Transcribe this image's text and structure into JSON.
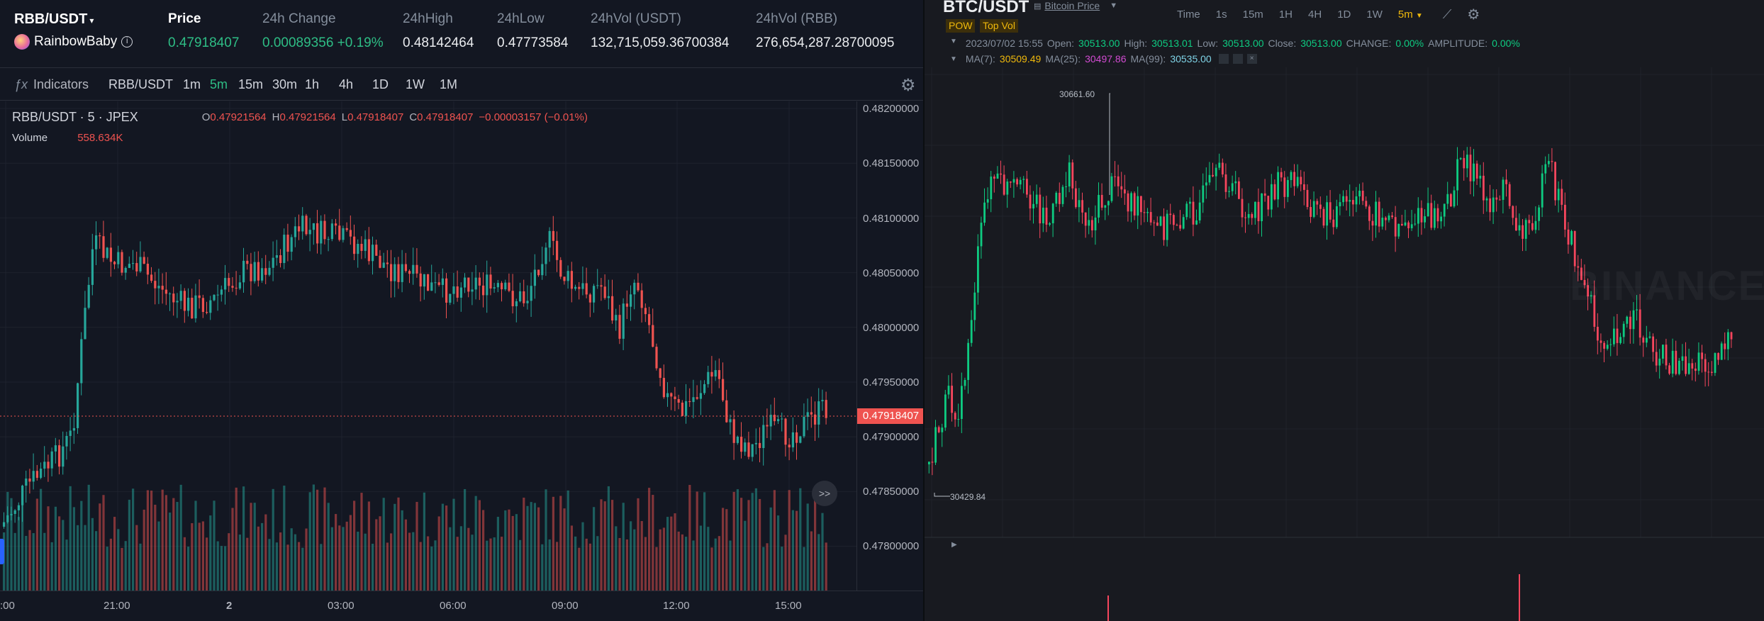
{
  "left": {
    "header": {
      "pair": "RBB/USDT",
      "token_name": "RainbowBaby",
      "price_label": "Price",
      "price_value": "0.47918407",
      "change_label": "24h Change",
      "change_value": "0.00089356 +0.19%",
      "high_label": "24hHigh",
      "high_value": "0.48142464",
      "low_label": "24hLow",
      "low_value": "0.47773584",
      "vol_usdt_label": "24hVol (USDT)",
      "vol_usdt_value": "132,715,059.36700384",
      "vol_rbb_label": "24hVol (RBB)",
      "vol_rbb_value": "276,654,287.28700095"
    },
    "toolbar": {
      "indicators_label": "Indicators",
      "symbol": "RBB/USDT",
      "timeframes": [
        "1m",
        "5m",
        "15m",
        "30m",
        "1h",
        "4h",
        "1D",
        "1W",
        "1M"
      ],
      "active_timeframe": "5m"
    },
    "legend": {
      "title": "RBB/USDT · 5 · JPEX",
      "o_label": "O",
      "o_value": "0.47921564",
      "h_label": "H",
      "h_value": "0.47921564",
      "l_label": "L",
      "l_value": "0.47918407",
      "c_label": "C",
      "c_value": "0.47918407",
      "change": "−0.00003157 (−0.01%)",
      "volume_label": "Volume",
      "volume_value": "558.634K"
    },
    "price_axis": [
      "0.48200000",
      "0.48150000",
      "0.48100000",
      "0.48050000",
      "0.48000000",
      "0.47950000",
      "0.47900000",
      "0.47850000",
      "0.47800000"
    ],
    "current_price_tag": "0.47918407",
    "time_axis": [
      ":00",
      "21:00",
      "2",
      "03:00",
      "06:00",
      "09:00",
      "12:00",
      "15:00"
    ],
    "scroll_button": ">>"
  },
  "right": {
    "header": {
      "pair": "BTC/USDT",
      "link_label": "Bitcoin Price",
      "tag_pow": "POW",
      "tag_topvol": "Top Vol"
    },
    "toolbar": {
      "time_label": "Time",
      "timeframes": [
        "1s",
        "15m",
        "1H",
        "4H",
        "1D",
        "1W"
      ],
      "active_timeframe": "5m"
    },
    "info": {
      "datetime": "2023/07/02 15:55",
      "open_label": "Open:",
      "open_value": "30513.00",
      "high_label": "High:",
      "high_value": "30513.01",
      "low_label": "Low:",
      "low_value": "30513.00",
      "close_label": "Close:",
      "close_value": "30513.00",
      "change_label": "CHANGE:",
      "change_value": "0.00%",
      "amp_label": "AMPLITUDE:",
      "amp_value": "0.00%"
    },
    "ma": {
      "ma7_label": "MA(7):",
      "ma7_value": "30509.49",
      "ma25_label": "MA(25):",
      "ma25_value": "30497.86",
      "ma99_label": "MA(99):",
      "ma99_value": "30535.00"
    },
    "high_marker": "30661.60",
    "low_marker": "30429.84",
    "watermark": "BINANCE"
  },
  "colors": {
    "up": "#26a69a",
    "down": "#ef5350",
    "binance_up": "#0ecb81",
    "binance_down": "#f6465d",
    "accent": "#f0b90b"
  }
}
